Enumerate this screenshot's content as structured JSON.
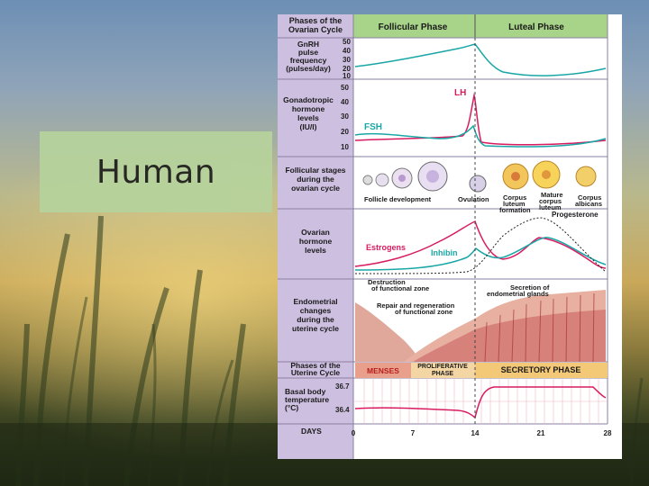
{
  "slide": {
    "title": "Human"
  },
  "header": {
    "left": "Phases of the Ovarian Cycle",
    "follicular": "Follicular Phase",
    "luteal": "Luteal Phase"
  },
  "rows": {
    "gnrh": {
      "label": "GnRH pulse frequency (pulses/day)",
      "ticks": [
        "50",
        "40",
        "30",
        "20",
        "10"
      ]
    },
    "gonadotropic": {
      "label": "Gonadotropic hormone levels (IU/l)",
      "ticks": [
        "50",
        "40",
        "30",
        "20",
        "10"
      ],
      "lh": "LH",
      "fsh": "FSH"
    },
    "follicular_stages": {
      "label": "Follicular stages during the ovarian cycle",
      "captions": [
        "Follicle development",
        "Ovulation",
        "Corpus luteum formation",
        "Mature corpus luteum",
        "Corpus albicans"
      ]
    },
    "ovarian_hormones": {
      "label": "Ovarian hormone levels",
      "estrogens": "Estrogens",
      "inhibin": "Inhibin",
      "progesterone": "Progesterone"
    },
    "endometrial": {
      "label": "Endometrial changes during the uterine cycle",
      "destruction": "Destruction of functional zone",
      "repair": "Repair and regeneration of functional zone",
      "secretion": "Secretion of endometrial glands"
    },
    "uterine_phases": {
      "label": "Phases of the Uterine Cycle",
      "menses": "MENSES",
      "proliferative": "PROLIFERATIVE PHASE",
      "secretory": "SECRETORY PHASE"
    },
    "temperature": {
      "label": "Basal body temperature (°C)",
      "high": "36.7",
      "low": "36.4"
    },
    "days": {
      "label": "DAYS",
      "ticks": [
        "0",
        "7",
        "14",
        "21",
        "28"
      ]
    }
  },
  "colors": {
    "label_column": "#cdbfe0",
    "header_bar": "#a8d48a",
    "lh": "#d81b60",
    "fsh": "#1aa6a6",
    "estrogens": "#d81b60",
    "inhibin": "#1aa6a6",
    "gnrh_line": "#1aa6a6",
    "menses": "#e8a08c",
    "proliferative": "#f4d6a4",
    "secretory": "#f3c877",
    "temperature": "#d81b60"
  }
}
